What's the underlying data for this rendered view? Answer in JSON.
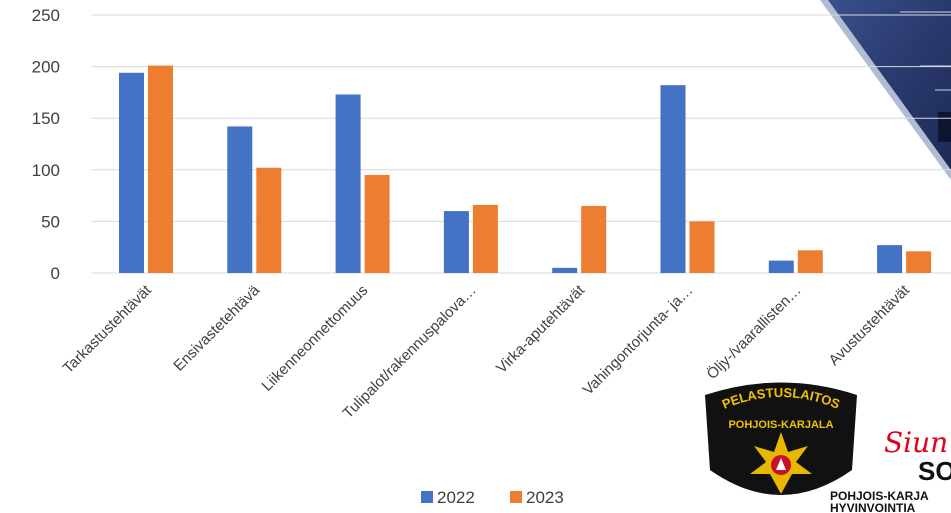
{
  "chart_data": {
    "type": "bar",
    "categories": [
      "Tarkastustehtävät",
      "Ensivastetehtävä",
      "Liikenneonnettomuus",
      "Tulipalot/rakennuspalova…",
      "Virka-aputehtävät",
      "Vahingontorjunta- ja…",
      "Öljy-/vaarallisten…",
      "Avustustehtävät"
    ],
    "series": [
      {
        "name": "2022",
        "color": "#4472C4",
        "values": [
          194,
          142,
          173,
          60,
          5,
          182,
          12,
          27
        ]
      },
      {
        "name": "2023",
        "color": "#ED7D31",
        "values": [
          201,
          102,
          95,
          66,
          65,
          50,
          22,
          21
        ]
      }
    ],
    "yticks": [
      0,
      50,
      100,
      150,
      200,
      250
    ],
    "ylim": [
      0,
      250
    ],
    "grid": true,
    "legend": "bottom"
  },
  "logos": {
    "rescue_badge": {
      "line1": "PELASTUSLAITOS",
      "line2": "POHJOIS-KARJALA"
    },
    "siun_sote": {
      "script": "Siun",
      "name": "SO",
      "line1": "POHJOIS-KARJA",
      "line2": "HYVINVOINTIA"
    }
  }
}
